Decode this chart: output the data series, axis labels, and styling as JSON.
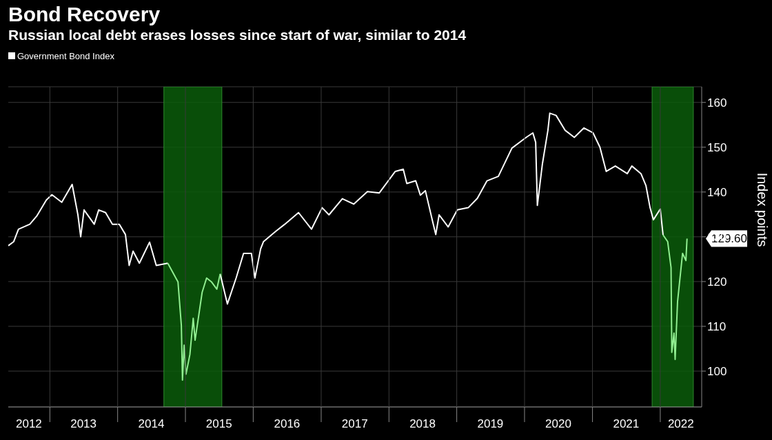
{
  "chart_data": {
    "type": "line",
    "title": "Bond Recovery",
    "subtitle": "Russian local debt erases losses since start of war, similar to 2014",
    "ylabel": "Index points",
    "legend": "top left",
    "grid": true,
    "line_style": "solid",
    "marker": "none",
    "x": [
      "2012-05-22",
      "2012-06-20",
      "2012-07-16",
      "2012-09-15",
      "2012-10-22",
      "2012-12-13",
      "2013-01-12",
      "2013-03-06",
      "2013-05-01",
      "2013-06-01",
      "2013-06-16",
      "2013-07-04",
      "2013-08-28",
      "2013-09-21",
      "2013-10-28",
      "2013-12-04",
      "2014-01-10",
      "2014-02-12",
      "2014-03-04",
      "2014-03-25",
      "2014-04-28",
      "2014-06-22",
      "2014-07-28",
      "2014-09-28",
      "2014-11-22",
      "2014-12-10",
      "2014-12-16",
      "2014-12-25",
      "2015-01-04",
      "2015-01-25",
      "2015-02-12",
      "2015-02-22",
      "2015-04-01",
      "2015-04-25",
      "2015-05-22",
      "2015-06-19",
      "2015-07-07",
      "2015-08-15",
      "2015-10-01",
      "2015-11-10",
      "2015-12-22",
      "2016-01-10",
      "2016-02-10",
      "2016-02-25",
      "2016-05-01",
      "2016-06-19",
      "2016-09-01",
      "2016-11-10",
      "2017-01-06",
      "2017-02-12",
      "2017-04-25",
      "2017-06-25",
      "2017-09-07",
      "2017-11-10",
      "2018-02-04",
      "2018-03-19",
      "2018-04-07",
      "2018-05-25",
      "2018-06-19",
      "2018-07-16",
      "2018-08-22",
      "2018-09-10",
      "2018-09-28",
      "2018-11-16",
      "2019-01-04",
      "2019-03-04",
      "2019-04-22",
      "2019-06-13",
      "2019-08-13",
      "2019-10-25",
      "2020-01-10",
      "2020-02-15",
      "2020-03-01",
      "2020-03-10",
      "2020-04-06",
      "2020-05-06",
      "2020-05-16",
      "2020-06-19",
      "2020-08-06",
      "2020-09-25",
      "2020-11-16",
      "2021-01-04",
      "2021-02-10",
      "2021-03-16",
      "2021-05-04",
      "2021-07-07",
      "2021-08-01",
      "2021-09-19",
      "2021-10-16",
      "2021-11-07",
      "2021-11-25",
      "2022-01-01",
      "2022-01-16",
      "2022-02-10",
      "2022-02-28",
      "2022-03-04",
      "2022-03-16",
      "2022-03-22",
      "2022-04-04",
      "2022-05-01",
      "2022-05-19",
      "2022-05-25"
    ],
    "series": [
      {
        "name": "Government Bond Index",
        "color": "#ffffff",
        "values": [
          128,
          128.9,
          131.7,
          132.8,
          134.6,
          138.2,
          139.4,
          137.7,
          141.7,
          134.9,
          130,
          136,
          132.8,
          136,
          135.4,
          132.8,
          132.8,
          130.5,
          123.6,
          126.8,
          124.1,
          128.8,
          123.6,
          124.1,
          null,
          null,
          null,
          null,
          null,
          null,
          null,
          null,
          null,
          null,
          null,
          null,
          121.7,
          115,
          120.8,
          126.3,
          126.3,
          120.8,
          127.3,
          128.9,
          131.2,
          132.8,
          135.4,
          131.7,
          136.5,
          134.9,
          138.5,
          137.3,
          140.1,
          139.8,
          144.6,
          145.1,
          141.9,
          142.5,
          139.3,
          140.3,
          133.8,
          130.5,
          134.9,
          132.2,
          136,
          136.5,
          138.6,
          142.5,
          143.5,
          149.8,
          152.2,
          153.2,
          151.1,
          137,
          146.2,
          153.8,
          157.6,
          157.1,
          153.8,
          152.2,
          154.3,
          153.2,
          150,
          144.6,
          145.8,
          144.1,
          145.8,
          144.1,
          141.4,
          136.5,
          133.8,
          136.2,
          130.4,
          null,
          null,
          null,
          null,
          null,
          null,
          null,
          null,
          null
        ]
      },
      {
        "color": "#90ee90",
        "values": [
          null,
          null,
          null,
          null,
          null,
          null,
          null,
          null,
          null,
          null,
          null,
          null,
          null,
          null,
          null,
          null,
          null,
          null,
          null,
          null,
          null,
          null,
          null,
          124.1,
          119.9,
          110.2,
          98,
          105.8,
          99.3,
          103.7,
          111.8,
          106.9,
          117.6,
          120.8,
          119.9,
          118.3,
          121.7,
          null,
          null,
          null,
          null,
          null,
          null,
          null,
          null,
          null,
          null,
          null,
          null,
          null,
          null,
          null,
          null,
          null,
          null,
          null,
          null,
          null,
          null,
          null,
          null,
          null,
          null,
          null,
          null,
          null,
          null,
          null,
          null,
          null,
          null,
          null,
          null,
          null,
          null,
          null,
          null,
          null,
          null,
          null,
          null,
          null,
          null,
          null,
          null,
          null,
          null,
          null,
          null,
          null,
          null,
          null,
          130.4,
          128.9,
          123.1,
          104.2,
          108.5,
          102.6,
          115.5,
          126.3,
          124.7,
          129.6
        ]
      }
    ],
    "bands": [
      {
        "axis": "x",
        "from": "2014-09-07",
        "to": "2015-07-16",
        "color": "#0b5c0b"
      },
      {
        "axis": "x",
        "from": "2021-11-18",
        "to": "2022-06-28",
        "color": "#0b5c0b"
      }
    ],
    "annotations": [
      {
        "text": "129.60",
        "x": "2022-05-25",
        "y": 129.6
      }
    ],
    "xlim": [
      "2012-05-22",
      "2022-08-12"
    ],
    "xticks": [
      {
        "value": "2012-09-10",
        "label": "2012"
      },
      {
        "value": "2013-01-01",
        "label": null
      },
      {
        "value": "2013-07-01",
        "label": "2013"
      },
      {
        "value": "2014-01-01",
        "label": null
      },
      {
        "value": "2014-07-01",
        "label": "2014"
      },
      {
        "value": "2015-01-01",
        "label": null
      },
      {
        "value": "2015-07-01",
        "label": "2015"
      },
      {
        "value": "2016-01-01",
        "label": null
      },
      {
        "value": "2016-07-01",
        "label": "2016"
      },
      {
        "value": "2017-01-01",
        "label": null
      },
      {
        "value": "2017-07-01",
        "label": "2017"
      },
      {
        "value": "2018-01-01",
        "label": null
      },
      {
        "value": "2018-07-01",
        "label": "2018"
      },
      {
        "value": "2019-01-01",
        "label": null
      },
      {
        "value": "2019-07-01",
        "label": "2019"
      },
      {
        "value": "2020-01-01",
        "label": null
      },
      {
        "value": "2020-07-01",
        "label": "2020"
      },
      {
        "value": "2021-01-01",
        "label": null
      },
      {
        "value": "2021-07-01",
        "label": "2021"
      },
      {
        "value": "2022-01-01",
        "label": null
      },
      {
        "value": "2022-04-22",
        "label": "2022"
      }
    ],
    "ylim": [
      92,
      163.5
    ],
    "yticks": [
      100,
      110,
      120,
      130,
      140,
      150,
      160
    ]
  }
}
